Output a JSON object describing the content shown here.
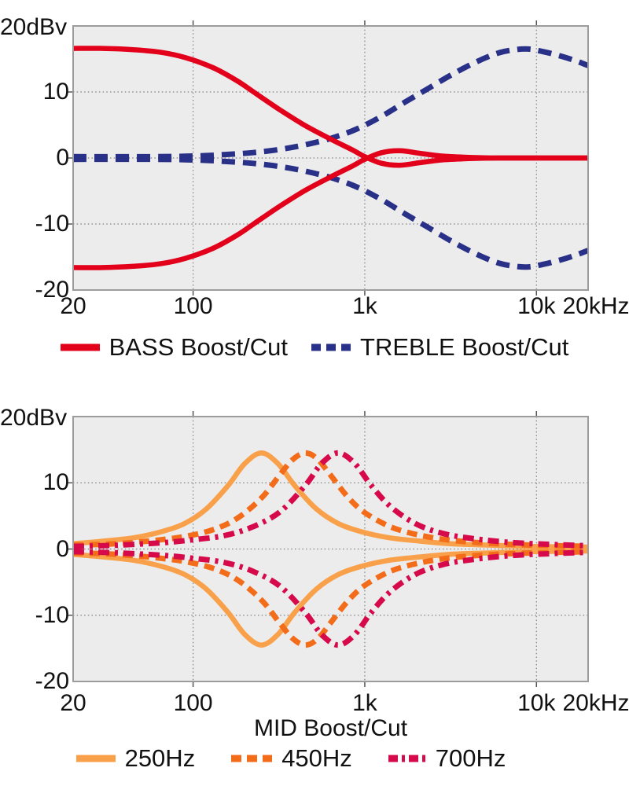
{
  "page": {
    "background": "#ffffff",
    "text_color": "#111111"
  },
  "chart_data": [
    {
      "type": "line",
      "x_scale": "log",
      "x_range": [
        20,
        20000
      ],
      "ylim": [
        -20,
        20
      ],
      "y_unit": "dBv",
      "y_axis_corner_label": "20dBv",
      "x_axis_title": "",
      "grid": true,
      "legend_position": "bottom",
      "plot_bg": "#ececec",
      "plot_border": "#9c9c9c",
      "grid_color": "#7f7f7f",
      "x_ticks": [
        [
          20,
          "20",
          0
        ],
        [
          100,
          "100",
          0
        ],
        [
          1000,
          "1k",
          0
        ],
        [
          10000,
          "10k",
          0
        ],
        [
          20000,
          "20kHz",
          10
        ]
      ],
      "y_ticks": [
        [
          10,
          "10"
        ],
        [
          0,
          "0"
        ],
        [
          -10,
          "-10"
        ],
        [
          -20,
          "-20"
        ]
      ],
      "series": [
        {
          "name": "TREBLE Boost/Cut",
          "slug": "treble",
          "color": "#283088",
          "style": "dashed",
          "dash": "17 10",
          "swatch_dash": "12 7",
          "curves": {
            "boost": [
              [
                20,
                0.2
              ],
              [
                60,
                0.2
              ],
              [
                100,
                0.3
              ],
              [
                150,
                0.5
              ],
              [
                220,
                0.8
              ],
              [
                320,
                1.3
              ],
              [
                450,
                2.0
              ],
              [
                640,
                3.0
              ],
              [
                900,
                4.4
              ],
              [
                1250,
                6.3
              ],
              [
                1700,
                8.4
              ],
              [
                2300,
                10.4
              ],
              [
                3200,
                12.6
              ],
              [
                4500,
                14.6
              ],
              [
                6000,
                15.9
              ],
              [
                7500,
                16.4
              ],
              [
                9000,
                16.5
              ],
              [
                11000,
                16.1
              ],
              [
                14000,
                15.4
              ],
              [
                17000,
                14.7
              ],
              [
                20000,
                14.0
              ]
            ],
            "cut": [
              [
                20,
                -0.2
              ],
              [
                60,
                -0.2
              ],
              [
                100,
                -0.3
              ],
              [
                150,
                -0.5
              ],
              [
                220,
                -0.8
              ],
              [
                320,
                -1.3
              ],
              [
                450,
                -2.0
              ],
              [
                640,
                -3.0
              ],
              [
                900,
                -4.4
              ],
              [
                1250,
                -6.3
              ],
              [
                1700,
                -8.4
              ],
              [
                2300,
                -10.4
              ],
              [
                3200,
                -12.6
              ],
              [
                4500,
                -14.6
              ],
              [
                6000,
                -15.9
              ],
              [
                7500,
                -16.4
              ],
              [
                9000,
                -16.5
              ],
              [
                11000,
                -16.1
              ],
              [
                14000,
                -15.4
              ],
              [
                17000,
                -14.7
              ],
              [
                20000,
                -14.0
              ]
            ]
          }
        },
        {
          "name": "BASS Boost/Cut",
          "slug": "bass",
          "color": "#e2001a",
          "style": "solid",
          "dash": "none",
          "swatch_dash": "none",
          "curves": {
            "boost": [
              [
                20,
                16.6
              ],
              [
                30,
                16.6
              ],
              [
                45,
                16.4
              ],
              [
                65,
                16.0
              ],
              [
                90,
                15.2
              ],
              [
                130,
                13.7
              ],
              [
                180,
                11.7
              ],
              [
                225,
                10.0
              ],
              [
                320,
                7.3
              ],
              [
                450,
                4.9
              ],
              [
                640,
                2.8
              ],
              [
                850,
                1.2
              ],
              [
                1000,
                0.2
              ],
              [
                1250,
                -0.8
              ],
              [
                1600,
                -1.1
              ],
              [
                2100,
                -0.7
              ],
              [
                2800,
                -0.3
              ],
              [
                4000,
                -0.1
              ],
              [
                6000,
                0
              ],
              [
                10000,
                0
              ],
              [
                20000,
                0
              ]
            ],
            "cut": [
              [
                20,
                -16.6
              ],
              [
                30,
                -16.6
              ],
              [
                45,
                -16.4
              ],
              [
                65,
                -16.0
              ],
              [
                90,
                -15.2
              ],
              [
                130,
                -13.7
              ],
              [
                180,
                -11.7
              ],
              [
                225,
                -10.0
              ],
              [
                320,
                -7.3
              ],
              [
                450,
                -4.9
              ],
              [
                640,
                -2.8
              ],
              [
                850,
                -1.2
              ],
              [
                1000,
                -0.2
              ],
              [
                1250,
                0.8
              ],
              [
                1600,
                1.1
              ],
              [
                2100,
                0.7
              ],
              [
                2800,
                0.3
              ],
              [
                4000,
                0.1
              ],
              [
                6000,
                0
              ],
              [
                10000,
                0
              ],
              [
                20000,
                0
              ]
            ]
          }
        }
      ],
      "legend_order": [
        1,
        0
      ]
    },
    {
      "type": "line",
      "x_scale": "log",
      "x_range": [
        20,
        20000
      ],
      "ylim": [
        -20,
        20
      ],
      "y_unit": "dBv",
      "y_axis_corner_label": "20dBv",
      "x_axis_title": "MID Boost/Cut",
      "grid": true,
      "legend_position": "bottom",
      "plot_bg": "#ececec",
      "plot_border": "#9c9c9c",
      "grid_color": "#7f7f7f",
      "x_ticks": [
        [
          20,
          "20",
          0
        ],
        [
          100,
          "100",
          0
        ],
        [
          1000,
          "1k",
          0
        ],
        [
          10000,
          "10k",
          0
        ],
        [
          20000,
          "20kHz",
          10
        ]
      ],
      "y_ticks": [
        [
          10,
          "10"
        ],
        [
          0,
          "0"
        ],
        [
          -10,
          "-10"
        ],
        [
          -20,
          "-20"
        ]
      ],
      "series": [
        {
          "name": "250Hz",
          "slug": "mid-250",
          "color": "#f9a04a",
          "style": "solid",
          "dash": "none",
          "swatch_dash": "none",
          "curves": {
            "boost": [
              [
                20,
                0.8
              ],
              [
                30,
                1.2
              ],
              [
                45,
                1.7
              ],
              [
                65,
                2.6
              ],
              [
                90,
                3.9
              ],
              [
                120,
                6.1
              ],
              [
                160,
                9.6
              ],
              [
                200,
                12.9
              ],
              [
                250,
                14.5
              ],
              [
                312,
                12.9
              ],
              [
                390,
                9.6
              ],
              [
                520,
                6.1
              ],
              [
                695,
                3.9
              ],
              [
                960,
                2.6
              ],
              [
                1390,
                1.7
              ],
              [
                2080,
                1.2
              ],
              [
                3130,
                0.8
              ],
              [
                5000,
                0.6
              ],
              [
                9000,
                0.4
              ],
              [
                20000,
                0.3
              ]
            ],
            "cut": [
              [
                20,
                -0.8
              ],
              [
                30,
                -1.2
              ],
              [
                45,
                -1.7
              ],
              [
                65,
                -2.6
              ],
              [
                90,
                -3.9
              ],
              [
                120,
                -6.1
              ],
              [
                160,
                -9.6
              ],
              [
                200,
                -12.9
              ],
              [
                250,
                -14.5
              ],
              [
                312,
                -12.9
              ],
              [
                390,
                -9.6
              ],
              [
                520,
                -6.1
              ],
              [
                695,
                -3.9
              ],
              [
                960,
                -2.6
              ],
              [
                1390,
                -1.7
              ],
              [
                2080,
                -1.2
              ],
              [
                3130,
                -0.8
              ],
              [
                5000,
                -0.6
              ],
              [
                9000,
                -0.4
              ],
              [
                20000,
                -0.3
              ]
            ]
          }
        },
        {
          "name": "450Hz",
          "slug": "mid-450",
          "color": "#f36c1a",
          "style": "dashed",
          "dash": "13 8",
          "swatch_dash": "13 7",
          "curves": {
            "boost": [
              [
                20,
                0.6
              ],
              [
                30,
                0.7
              ],
              [
                45,
                1.0
              ],
              [
                65,
                1.4
              ],
              [
                90,
                1.9
              ],
              [
                130,
                2.9
              ],
              [
                180,
                4.6
              ],
              [
                250,
                7.7
              ],
              [
                320,
                11.2
              ],
              [
                380,
                13.5
              ],
              [
                450,
                14.5
              ],
              [
                530,
                13.6
              ],
              [
                630,
                11.2
              ],
              [
                800,
                7.8
              ],
              [
                1000,
                5.5
              ],
              [
                1400,
                3.4
              ],
              [
                2000,
                2.2
              ],
              [
                3000,
                1.4
              ],
              [
                5000,
                0.9
              ],
              [
                9000,
                0.6
              ],
              [
                20000,
                0.4
              ]
            ],
            "cut": [
              [
                20,
                -0.6
              ],
              [
                30,
                -0.7
              ],
              [
                45,
                -1.0
              ],
              [
                65,
                -1.4
              ],
              [
                90,
                -1.9
              ],
              [
                130,
                -2.9
              ],
              [
                180,
                -4.6
              ],
              [
                250,
                -7.7
              ],
              [
                320,
                -11.2
              ],
              [
                380,
                -13.5
              ],
              [
                450,
                -14.5
              ],
              [
                530,
                -13.6
              ],
              [
                630,
                -11.2
              ],
              [
                800,
                -7.8
              ],
              [
                1000,
                -5.5
              ],
              [
                1400,
                -3.4
              ],
              [
                2000,
                -2.2
              ],
              [
                3000,
                -1.4
              ],
              [
                5000,
                -0.9
              ],
              [
                9000,
                -0.6
              ],
              [
                20000,
                -0.4
              ]
            ]
          }
        },
        {
          "name": "700Hz",
          "slug": "mid-700",
          "color": "#d6094b",
          "style": "dash-dot",
          "dash": "14 7 4 7",
          "swatch_dash": "12 5 4 5",
          "curves": {
            "boost": [
              [
                20,
                0.4
              ],
              [
                30,
                0.5
              ],
              [
                45,
                0.7
              ],
              [
                70,
                1.0
              ],
              [
                100,
                1.4
              ],
              [
                150,
                2.0
              ],
              [
                220,
                3.3
              ],
              [
                320,
                5.6
              ],
              [
                450,
                9.6
              ],
              [
                560,
                12.9
              ],
              [
                700,
                14.5
              ],
              [
                875,
                12.9
              ],
              [
                1090,
                9.6
              ],
              [
                1400,
                6.5
              ],
              [
                1950,
                3.9
              ],
              [
                2800,
                2.4
              ],
              [
                4200,
                1.6
              ],
              [
                7000,
                1.0
              ],
              [
                12000,
                0.7
              ],
              [
                20000,
                0.5
              ]
            ],
            "cut": [
              [
                20,
                -0.4
              ],
              [
                30,
                -0.5
              ],
              [
                45,
                -0.7
              ],
              [
                70,
                -1.0
              ],
              [
                100,
                -1.4
              ],
              [
                150,
                -2.0
              ],
              [
                220,
                -3.3
              ],
              [
                320,
                -5.6
              ],
              [
                450,
                -9.6
              ],
              [
                560,
                -12.9
              ],
              [
                700,
                -14.5
              ],
              [
                875,
                -12.9
              ],
              [
                1090,
                -9.6
              ],
              [
                1400,
                -6.5
              ],
              [
                1950,
                -3.9
              ],
              [
                2800,
                -2.4
              ],
              [
                4200,
                -1.6
              ],
              [
                7000,
                -1.0
              ],
              [
                12000,
                -0.7
              ],
              [
                20000,
                -0.5
              ]
            ]
          }
        }
      ],
      "legend_order": [
        0,
        1,
        2
      ]
    }
  ]
}
